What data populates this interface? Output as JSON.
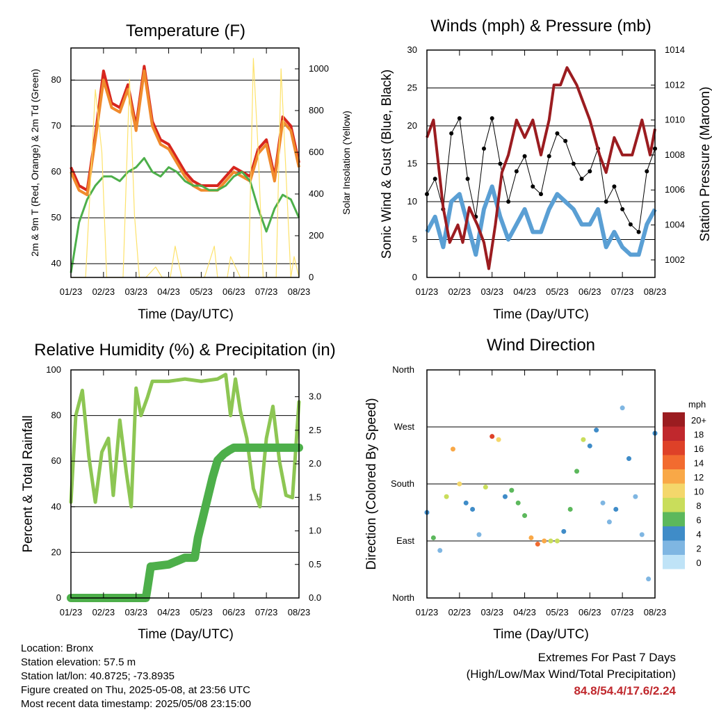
{
  "info": {
    "location": "Location: Bronx",
    "elevation": "Station elevation: 57.5 m",
    "latlon": "Station lat/lon: 40.8725; -73.8935",
    "created": "Figure created on Thu, 2025-05-08, at 23:56 UTC",
    "recent": "Most recent data timestamp: 2025/05/08 23:15:00"
  },
  "extremes": {
    "title": "Extremes For Past 7 Days",
    "subtitle": "(High/Low/Max Wind/Total Precipitation)",
    "values": "84.8/54.4/17.6/2.24"
  },
  "colors": {
    "red": "#d7261e",
    "orange": "#f08a2c",
    "green": "#4daf4a",
    "yellow": "#fde26a",
    "black": "#000000",
    "blue": "#5a9fd4",
    "maroon": "#9b1c20",
    "rh": "#8dc653",
    "precip": "#4daf4a"
  },
  "chart_data": [
    {
      "type": "line",
      "title": "Temperature (F)",
      "xlabel": "Time (Day/UTC)",
      "ylabel": "2m & 9m T (Red, Orange) & 2m Td (Green)",
      "y2label": "Solar Insolation (Yellow)",
      "xticks": [
        "01/23",
        "02/23",
        "03/23",
        "04/23",
        "05/23",
        "06/23",
        "07/23",
        "08/23"
      ],
      "yticks": [
        40,
        50,
        60,
        70,
        80
      ],
      "ylim": [
        37,
        87
      ],
      "y2ticks": [
        0,
        200,
        400,
        600,
        800,
        1000
      ],
      "y2lim": [
        0,
        1100
      ],
      "grid": true,
      "series": [
        {
          "name": "2m T",
          "color": "red",
          "x": [
            0,
            0.25,
            0.5,
            0.75,
            1,
            1.25,
            1.5,
            1.75,
            2,
            2.25,
            2.5,
            2.75,
            3,
            3.25,
            3.5,
            3.75,
            4,
            4.25,
            4.5,
            4.75,
            5,
            5.25,
            5.5,
            5.75,
            6,
            6.25,
            6.5,
            6.75,
            7
          ],
          "y": [
            61,
            57,
            56,
            68,
            82,
            75,
            74,
            79,
            70,
            83,
            71,
            67,
            66,
            63,
            60,
            58,
            57,
            57,
            57,
            59,
            61,
            60,
            59,
            65,
            67,
            59,
            72,
            70,
            62
          ]
        },
        {
          "name": "9m T",
          "color": "orange",
          "x": [
            0,
            0.25,
            0.5,
            0.75,
            1,
            1.25,
            1.5,
            1.75,
            2,
            2.25,
            2.5,
            2.75,
            3,
            3.25,
            3.5,
            3.75,
            4,
            4.25,
            4.5,
            4.75,
            5,
            5.25,
            5.5,
            5.75,
            6,
            6.25,
            6.5,
            6.75,
            7
          ],
          "y": [
            60,
            56,
            55,
            67,
            80,
            74,
            73,
            78,
            69,
            82,
            70,
            66,
            65,
            62,
            59,
            57,
            56,
            56,
            56,
            58,
            60,
            59,
            58,
            64,
            66,
            58,
            71,
            69,
            61
          ]
        },
        {
          "name": "2m Td",
          "color": "green",
          "x": [
            0,
            0.25,
            0.5,
            0.75,
            1,
            1.25,
            1.5,
            1.75,
            2,
            2.25,
            2.5,
            2.75,
            3,
            3.25,
            3.5,
            3.75,
            4,
            4.25,
            4.5,
            4.75,
            5,
            5.25,
            5.5,
            5.75,
            6,
            6.25,
            6.5,
            6.75,
            7
          ],
          "y": [
            38,
            49,
            54,
            57,
            59,
            59,
            58,
            60,
            61,
            63,
            60,
            59,
            61,
            60,
            58,
            57,
            57,
            56,
            56,
            57,
            59,
            60,
            58,
            52,
            47,
            52,
            55,
            54,
            50
          ]
        },
        {
          "name": "Solar",
          "color": "yellow",
          "x": [
            0,
            0.45,
            0.75,
            0.95,
            1.1,
            1.3,
            1.6,
            1.8,
            1.95,
            2.1,
            2.3,
            2.6,
            2.8,
            3.05,
            3.2,
            3.4,
            3.6,
            3.8,
            4.1,
            4.4,
            4.5,
            4.6,
            4.8,
            4.9,
            5.2,
            5.45,
            5.6,
            5.75,
            5.9,
            6.3,
            6.45,
            6.6,
            6.75,
            6.85,
            7
          ],
          "y": [
            0,
            0,
            900,
            600,
            0,
            0,
            0,
            950,
            300,
            0,
            0,
            50,
            0,
            0,
            150,
            0,
            0,
            0,
            0,
            150,
            0,
            0,
            0,
            100,
            0,
            0,
            1050,
            600,
            0,
            0,
            1000,
            500,
            0,
            100,
            0
          ]
        }
      ]
    },
    {
      "type": "line",
      "title": "Winds (mph) & Pressure (mb)",
      "xlabel": "Time (Day/UTC)",
      "ylabel": "Sonic Wind & Gust (Blue, Black)",
      "y2label": "Station Pressure (Maroon)",
      "xticks": [
        "01/23",
        "02/23",
        "03/23",
        "04/23",
        "05/23",
        "06/23",
        "07/23",
        "08/23"
      ],
      "yticks": [
        0,
        5,
        10,
        15,
        20,
        25,
        30
      ],
      "ylim": [
        0,
        30
      ],
      "y2ticks": [
        1002,
        1004,
        1006,
        1008,
        1010,
        1012,
        1014
      ],
      "y2lim": [
        1001,
        1014
      ],
      "grid": true,
      "series": [
        {
          "name": "Gust",
          "color": "black",
          "x": [
            0,
            0.25,
            0.5,
            0.75,
            1,
            1.25,
            1.5,
            1.75,
            2,
            2.25,
            2.5,
            2.75,
            3,
            3.25,
            3.5,
            3.75,
            4,
            4.25,
            4.5,
            4.75,
            5,
            5.25,
            5.5,
            5.75,
            6,
            6.25,
            6.5,
            6.75,
            7
          ],
          "y": [
            11,
            13,
            9,
            19,
            21,
            13,
            8,
            17,
            21,
            15,
            10,
            14,
            16,
            12,
            11,
            16,
            19,
            18,
            15,
            13,
            14,
            17,
            10,
            12,
            9,
            7,
            6,
            14,
            17
          ]
        },
        {
          "name": "Wind",
          "color": "blue",
          "x": [
            0,
            0.25,
            0.5,
            0.75,
            1,
            1.25,
            1.5,
            1.75,
            2,
            2.25,
            2.5,
            2.75,
            3,
            3.25,
            3.5,
            3.75,
            4,
            4.25,
            4.5,
            4.75,
            5,
            5.25,
            5.5,
            5.75,
            6,
            6.25,
            6.5,
            6.75,
            7
          ],
          "y": [
            6,
            8,
            4,
            10,
            11,
            7,
            3,
            9,
            12,
            8,
            5,
            7,
            9,
            6,
            6,
            9,
            11,
            10,
            9,
            7,
            7,
            9,
            4,
            6,
            4,
            3,
            3,
            7,
            9
          ]
        },
        {
          "name": "Pressure",
          "color": "maroon",
          "x": [
            0,
            0.2,
            0.5,
            0.7,
            0.95,
            1.1,
            1.3,
            1.55,
            1.75,
            1.9,
            2.1,
            2.3,
            2.5,
            2.75,
            3,
            3.25,
            3.5,
            3.75,
            3.9,
            4.1,
            4.3,
            4.6,
            4.8,
            5.0,
            5.3,
            5.5,
            5.75,
            6.0,
            6.3,
            6.6,
            6.85,
            7
          ],
          "y": [
            1009,
            1010,
            1005,
            1003,
            1004,
            1003,
            1005,
            1004,
            1003,
            1001.5,
            1004,
            1007,
            1008,
            1010,
            1009,
            1010,
            1008,
            1010,
            1012,
            1012,
            1013,
            1012,
            1011,
            1010,
            1008,
            1007,
            1009,
            1008,
            1008,
            1010,
            1008,
            1009.5
          ]
        }
      ]
    },
    {
      "type": "line",
      "title": "Relative Humidity (%) & Precipitation (in)",
      "xlabel": "Time (Day/UTC)",
      "ylabel": "Percent & Total Rainfall",
      "xticks": [
        "01/23",
        "02/23",
        "03/23",
        "04/23",
        "05/23",
        "06/23",
        "07/23",
        "08/23"
      ],
      "yticks": [
        0,
        20,
        40,
        60,
        80,
        100
      ],
      "ylim": [
        0,
        100
      ],
      "y2ticks": [
        "0.0",
        "0.5",
        "1.0",
        "1.5",
        "2.0",
        "2.5",
        "3.0"
      ],
      "y2lim": [
        0,
        3.4
      ],
      "grid": true,
      "series": [
        {
          "name": "RH",
          "color": "rh",
          "x": [
            0,
            0.15,
            0.35,
            0.55,
            0.75,
            0.95,
            1.15,
            1.3,
            1.5,
            1.7,
            1.85,
            2.0,
            2.15,
            2.35,
            2.5,
            2.75,
            3.0,
            3.5,
            4.0,
            4.5,
            4.75,
            4.9,
            5.05,
            5.2,
            5.4,
            5.6,
            5.8,
            6.0,
            6.2,
            6.4,
            6.6,
            6.8,
            7
          ],
          "y": [
            42,
            80,
            91,
            62,
            42,
            64,
            70,
            45,
            78,
            55,
            40,
            92,
            80,
            88,
            95,
            95,
            95,
            96,
            95,
            96,
            98,
            80,
            96,
            82,
            70,
            48,
            40,
            70,
            84,
            60,
            45,
            44,
            86
          ]
        },
        {
          "name": "Precip",
          "color": "precip",
          "x": [
            0,
            2.3,
            2.35,
            2.45,
            2.5,
            3.0,
            3.5,
            3.8,
            3.9,
            4.05,
            4.2,
            4.35,
            4.5,
            4.7,
            4.85,
            5.0,
            7
          ],
          "y": [
            0,
            0,
            0.15,
            0.47,
            0.47,
            0.5,
            0.6,
            0.6,
            0.9,
            1.2,
            1.5,
            1.8,
            2.05,
            2.15,
            2.2,
            2.24,
            2.24
          ]
        }
      ]
    },
    {
      "type": "scatter",
      "title": "Wind Direction",
      "xlabel": "Time (Day/UTC)",
      "ylabel": "Direction (Colored By Speed)",
      "xticks": [
        "01/23",
        "02/23",
        "03/23",
        "04/23",
        "05/23",
        "06/23",
        "07/23",
        "08/23"
      ],
      "yticks": [
        "North",
        "East",
        "South",
        "West",
        "North"
      ],
      "ylim": [
        0,
        360
      ],
      "grid": true,
      "legend": {
        "title": "mph",
        "labels": [
          "20+",
          "18",
          "16",
          "14",
          "12",
          "10",
          "8",
          "6",
          "4",
          "2",
          "0"
        ],
        "colors": [
          "#9b1c20",
          "#c0282d",
          "#de4128",
          "#f26b2f",
          "#f9a847",
          "#f4d76b",
          "#c9dd5b",
          "#5cb85c",
          "#3f8cc8",
          "#7fb6e2",
          "#bfe3f7"
        ]
      },
      "series": [
        {
          "name": "Direction",
          "x": [
            0,
            0.2,
            0.4,
            0.6,
            0.8,
            1.0,
            1.2,
            1.4,
            1.6,
            1.8,
            2.0,
            2.2,
            2.4,
            2.6,
            2.8,
            3.0,
            3.2,
            3.4,
            3.6,
            3.8,
            4.0,
            4.2,
            4.4,
            4.6,
            4.8,
            5.0,
            5.2,
            5.4,
            5.6,
            5.8,
            6.0,
            6.2,
            6.4,
            6.6,
            6.8,
            7
          ],
          "y": [
            135,
            95,
            75,
            160,
            235,
            180,
            150,
            140,
            100,
            175,
            255,
            250,
            160,
            170,
            150,
            130,
            95,
            85,
            90,
            90,
            90,
            105,
            140,
            200,
            250,
            240,
            265,
            150,
            120,
            140,
            300,
            220,
            160,
            100,
            30,
            260
          ],
          "speed": [
            4,
            6,
            3,
            8,
            13,
            10,
            5,
            4,
            3,
            9,
            16,
            11,
            5,
            6,
            7,
            7,
            12,
            14,
            12,
            9,
            8,
            5,
            6,
            7,
            8,
            5,
            4,
            2,
            3,
            4,
            3,
            5,
            2,
            3,
            2,
            5
          ]
        }
      ]
    }
  ]
}
